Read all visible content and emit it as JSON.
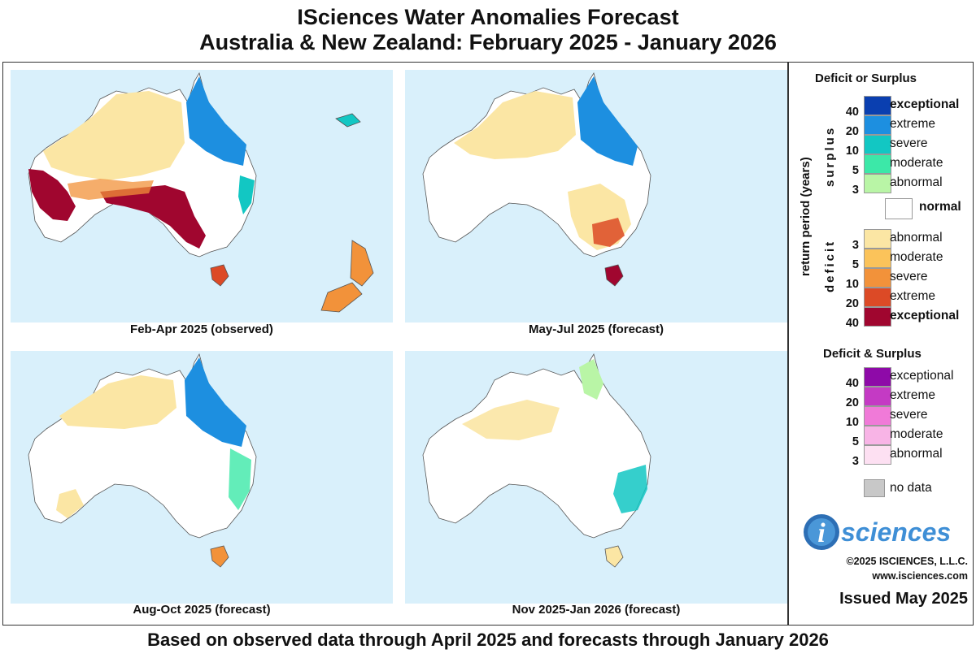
{
  "title": {
    "line1": "ISciences Water Anomalies Forecast",
    "line2": "Australia & New Zealand: February 2025 - January 2026"
  },
  "footer": "Based on observed data through April 2025 and forecasts through January 2026",
  "panels": [
    {
      "caption": "Feb-Apr 2025 (observed)"
    },
    {
      "caption": "May-Jul 2025 (forecast)"
    },
    {
      "caption": "Aug-Oct 2025 (forecast)"
    },
    {
      "caption": "Nov 2025-Jan 2026 (forecast)"
    }
  ],
  "legend": {
    "deficit_or_surplus_title": "Deficit or Surplus",
    "axis_label": "return period (years)",
    "surplus_label": "surplus",
    "deficit_label": "deficit",
    "surplus_classes": [
      {
        "label": "exceptional",
        "color": "#0a3fb0"
      },
      {
        "label": "extreme",
        "color": "#1d8fe0"
      },
      {
        "label": "severe",
        "color": "#12c7c3"
      },
      {
        "label": "moderate",
        "color": "#3ce8a8"
      },
      {
        "label": "abnormal",
        "color": "#b9f5a6"
      }
    ],
    "normal": {
      "label": "normal",
      "color": "#ffffff"
    },
    "deficit_classes": [
      {
        "label": "abnormal",
        "color": "#fbe6a4"
      },
      {
        "label": "moderate",
        "color": "#fbc35a"
      },
      {
        "label": "severe",
        "color": "#f2923a"
      },
      {
        "label": "extreme",
        "color": "#dc4a26"
      },
      {
        "label": "exceptional",
        "color": "#a0062f"
      }
    ],
    "surplus_ticks": [
      "40",
      "20",
      "10",
      "5",
      "3"
    ],
    "deficit_ticks": [
      "3",
      "5",
      "10",
      "20",
      "40"
    ],
    "both_title": "Deficit & Surplus",
    "both_classes": [
      {
        "label": "exceptional",
        "color": "#8e0aa8"
      },
      {
        "label": "extreme",
        "color": "#c43ac4"
      },
      {
        "label": "severe",
        "color": "#f07ad8"
      },
      {
        "label": "moderate",
        "color": "#f8b4e6"
      },
      {
        "label": "abnormal",
        "color": "#fde0f2"
      }
    ],
    "both_ticks": [
      "40",
      "20",
      "10",
      "5",
      "3"
    ],
    "no_data": {
      "label": "no data",
      "color": "#c8c8c8"
    }
  },
  "logo": {
    "letter": "i",
    "text": "sciences"
  },
  "copyright": "©2025 ISCIENCES, L.L.C.",
  "website": "www.isciences.com",
  "issued": "Issued May 2025",
  "colors": {
    "ocean": "#d9f0fb",
    "land": "#ffffff",
    "border": "#555555"
  }
}
